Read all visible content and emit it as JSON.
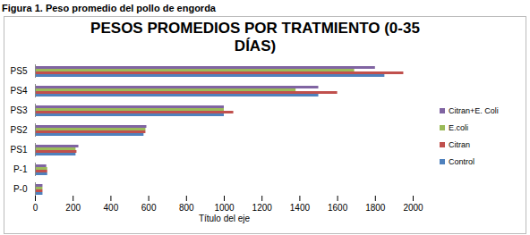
{
  "caption": "Figura 1. Peso promedio del pollo de engorda",
  "chart_data": {
    "type": "bar",
    "orientation": "horizontal",
    "title": "PESOS PROMEDIOS POR TRATMIENTO (0-35 DÍAS)",
    "x_label": "Título del eje",
    "categories": [
      "P-0",
      "P-1",
      "PS1",
      "PS2",
      "PS3",
      "PS4",
      "PS5"
    ],
    "series": [
      {
        "name": "Control",
        "color": "#4f81bd",
        "values": [
          40,
          65,
          215,
          575,
          1000,
          1500,
          1850
        ]
      },
      {
        "name": "Citran",
        "color": "#c0504d",
        "values": [
          40,
          65,
          220,
          585,
          1050,
          1600,
          1950
        ]
      },
      {
        "name": "E.coli",
        "color": "#9bbb59",
        "values": [
          40,
          65,
          215,
          585,
          1000,
          1380,
          1690
        ]
      },
      {
        "name": "Citran+E. Coli",
        "color": "#8064a2",
        "values": [
          40,
          60,
          230,
          590,
          1000,
          1500,
          1800
        ]
      }
    ],
    "xlim": [
      0,
      2000
    ],
    "xticks": [
      0,
      200,
      400,
      600,
      800,
      1000,
      1200,
      1400,
      1600,
      1800,
      2000
    ],
    "grid": false,
    "legend": "right",
    "data_labels": false
  }
}
